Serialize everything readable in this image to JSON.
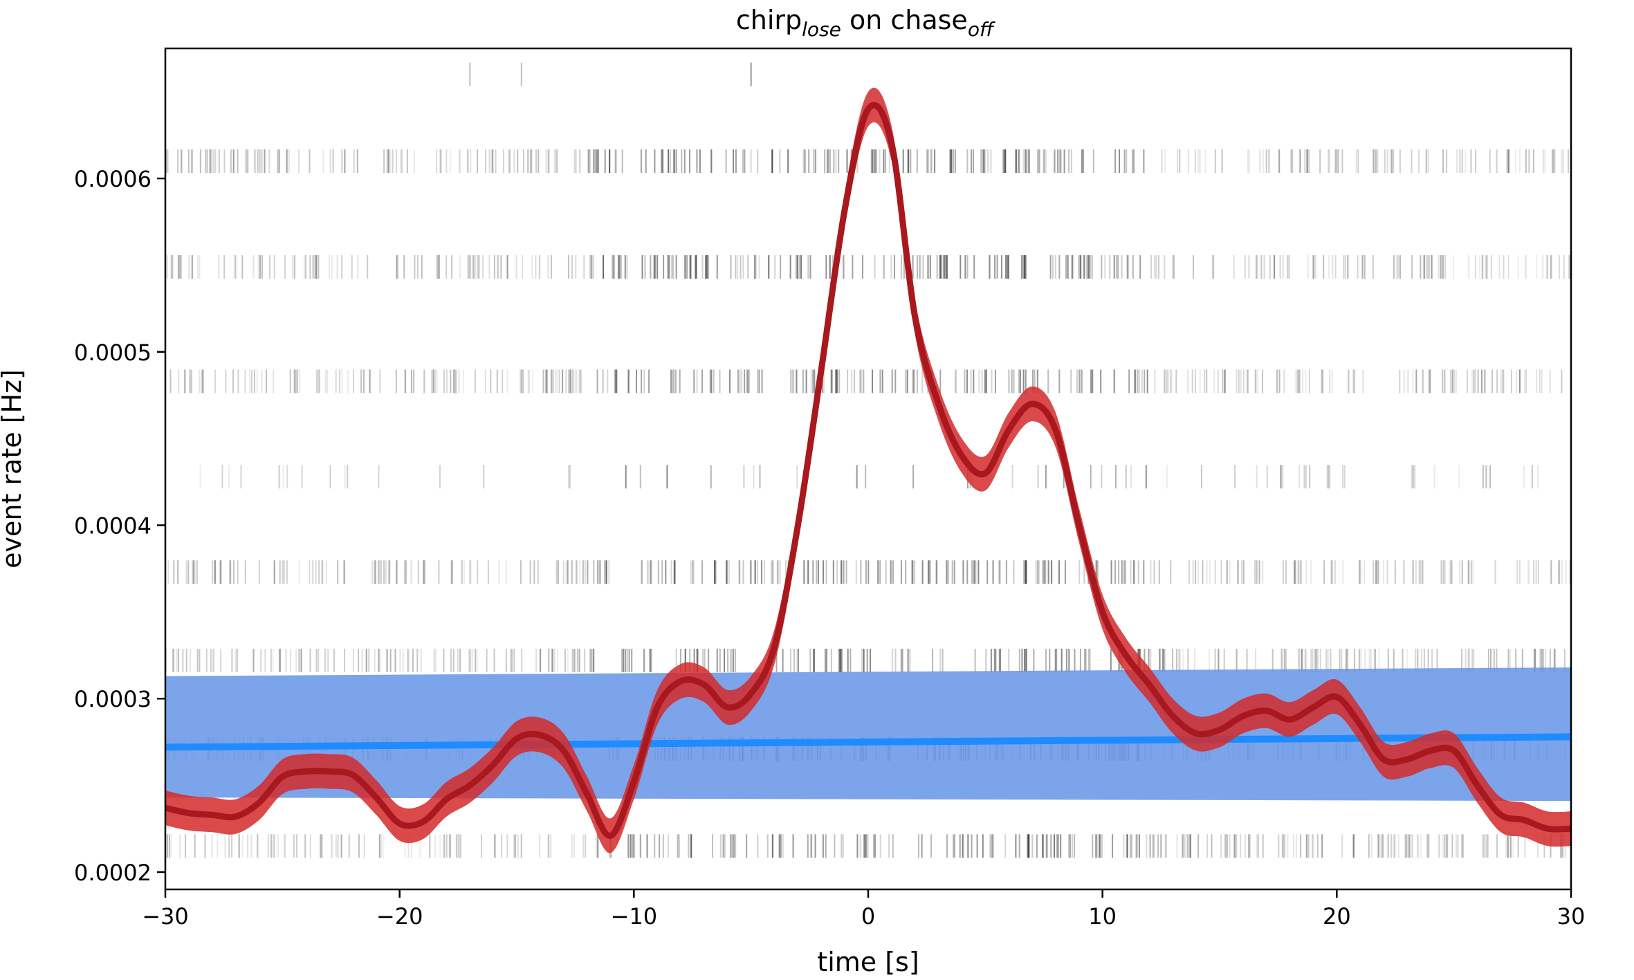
{
  "chart_data": {
    "type": "line",
    "title": {
      "base": "chirp",
      "sub": "lose",
      "mid": " on ",
      "base2": "chase",
      "sub2": "off"
    },
    "xlabel": "time [s]",
    "ylabel": "event rate [Hz]",
    "xlim": [
      -30,
      30
    ],
    "ylim": [
      0.00019,
      0.000675
    ],
    "xticks": [
      -30,
      -20,
      -10,
      0,
      10,
      20,
      30
    ],
    "xtick_labels": [
      "−30",
      "−20",
      "−10",
      "0",
      "10",
      "20",
      "30"
    ],
    "yticks": [
      0.0002,
      0.0003,
      0.0004,
      0.0005,
      0.0006
    ],
    "ytick_labels": [
      "0.0002",
      "0.0003",
      "0.0004",
      "0.0005",
      "0.0006"
    ],
    "grid": false,
    "legend": "none",
    "colors": {
      "event": "#d42a2a",
      "event_band": "#d42a2a",
      "event_line": "#a8181e",
      "baseline_band": "#6a97e8",
      "baseline_line": "#1e8cff",
      "raster": "#000000"
    },
    "series": [
      {
        "x": [
          -30,
          -29,
          -28,
          -27,
          -26,
          -25,
          -24,
          -23,
          -22,
          -21,
          -20,
          -19,
          -18,
          -17,
          -16,
          -15,
          -14,
          -13,
          -12,
          -11,
          -10,
          -9,
          -8,
          -7,
          -6,
          -5,
          -4,
          -3,
          -2,
          -1,
          0,
          1,
          2,
          3,
          4,
          5,
          6,
          7,
          8,
          9,
          10,
          11,
          12,
          13,
          14,
          15,
          16,
          17,
          18,
          19,
          20,
          21,
          22,
          23,
          24,
          25,
          26,
          27,
          28,
          29,
          30
        ],
        "y": [
          0.000237,
          0.000234,
          0.000233,
          0.000232,
          0.00024,
          0.000255,
          0.000258,
          0.000258,
          0.000256,
          0.000243,
          0.000228,
          0.000229,
          0.000242,
          0.00025,
          0.000262,
          0.000277,
          0.000279,
          0.00027,
          0.000245,
          0.000221,
          0.000252,
          0.000295,
          0.00031,
          0.000308,
          0.000295,
          0.000303,
          0.00033,
          0.0004,
          0.00049,
          0.000582,
          0.00064,
          0.00062,
          0.00052,
          0.00047,
          0.00044,
          0.00043,
          0.000455,
          0.00047,
          0.000455,
          0.0004,
          0.00035,
          0.000325,
          0.000308,
          0.00029,
          0.00028,
          0.000282,
          0.00029,
          0.000293,
          0.000288,
          0.000295,
          0.000301,
          0.000285,
          0.000265,
          0.000265,
          0.00027,
          0.00027,
          0.00025,
          0.000233,
          0.00023,
          0.000225,
          0.000225
        ],
        "band": 1e-05
      },
      {
        "x": [
          -30,
          30
        ],
        "y": [
          0.000272,
          0.000278
        ],
        "band_low": [
          0.000243,
          0.000241
        ],
        "band_high": [
          0.000313,
          0.000318
        ]
      }
    ],
    "raster_rows": [
      0.000215,
      0.000271,
      0.000322,
      0.000373,
      0.000428,
      0.000483,
      0.000549,
      0.00061,
      0.00066
    ]
  }
}
